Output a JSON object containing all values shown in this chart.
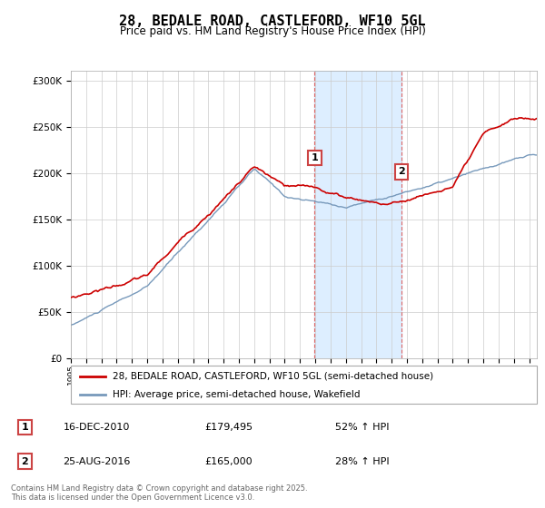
{
  "title": "28, BEDALE ROAD, CASTLEFORD, WF10 5GL",
  "subtitle": "Price paid vs. HM Land Registry's House Price Index (HPI)",
  "red_label": "28, BEDALE ROAD, CASTLEFORD, WF10 5GL (semi-detached house)",
  "blue_label": "HPI: Average price, semi-detached house, Wakefield",
  "transaction1_date": "16-DEC-2010",
  "transaction1_price": "£179,495",
  "transaction1_hpi": "52% ↑ HPI",
  "transaction2_date": "25-AUG-2016",
  "transaction2_price": "£165,000",
  "transaction2_hpi": "28% ↑ HPI",
  "footnote": "Contains HM Land Registry data © Crown copyright and database right 2025.\nThis data is licensed under the Open Government Licence v3.0.",
  "ylim": [
    0,
    310000
  ],
  "background_color": "#ffffff",
  "highlight_color": "#ddeeff",
  "transaction1_x": 2010.96,
  "transaction2_x": 2016.65,
  "grid_color": "#cccccc",
  "red_color": "#cc0000",
  "blue_color": "#7799bb"
}
